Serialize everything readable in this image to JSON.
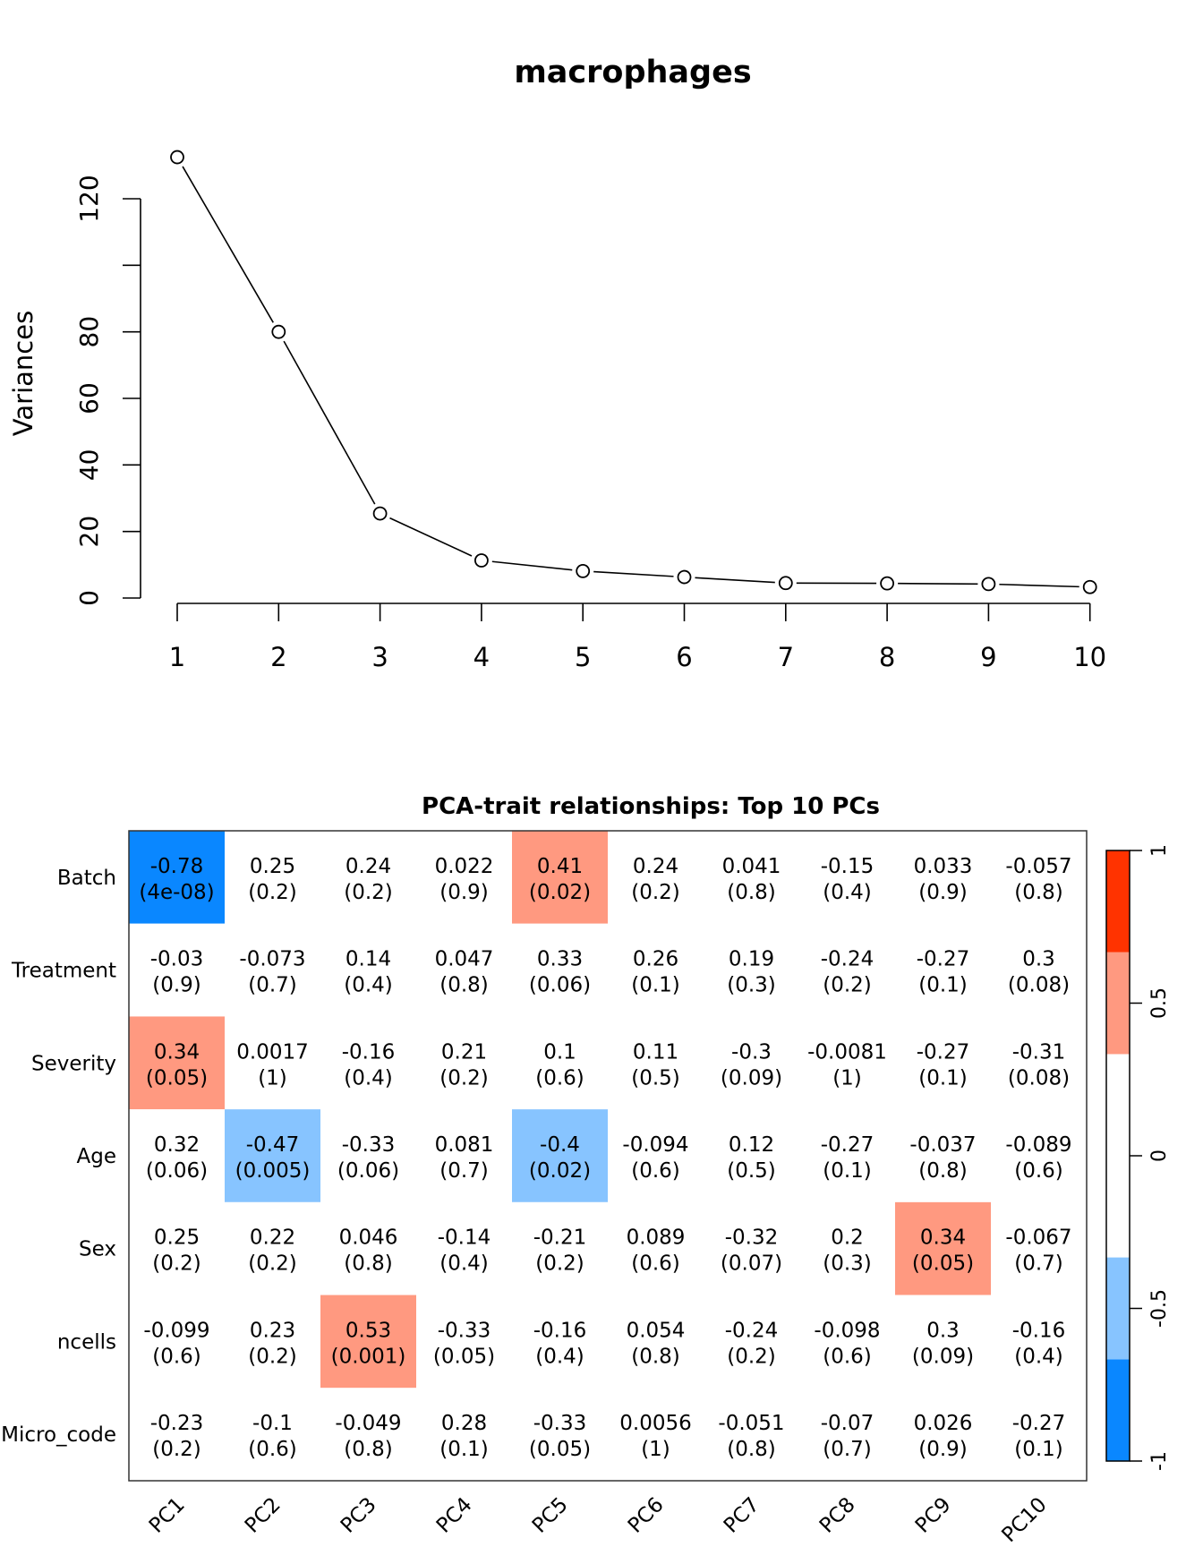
{
  "chart_data": [
    {
      "type": "line",
      "title": "macrophages",
      "xlabel": "",
      "ylabel": "Variances",
      "x": [
        1,
        2,
        3,
        4,
        5,
        6,
        7,
        8,
        9,
        10
      ],
      "values": [
        132.5,
        80,
        25.4,
        11.3,
        8.1,
        6.3,
        4.5,
        4.4,
        4.2,
        3.3
      ],
      "xticks": [
        "1",
        "2",
        "3",
        "4",
        "5",
        "6",
        "7",
        "8",
        "9",
        "10"
      ],
      "yticks": [
        0,
        20,
        40,
        60,
        80,
        100,
        120
      ],
      "ytick_labels": [
        "0",
        "20",
        "40",
        "60",
        "80",
        "",
        "120"
      ],
      "ylim": [
        0,
        132.5
      ],
      "marker": "open-circle",
      "grid": false
    },
    {
      "type": "heatmap",
      "title": "PCA-trait relationships: Top 10 PCs",
      "columns": [
        "PC1",
        "PC2",
        "PC3",
        "PC4",
        "PC5",
        "PC6",
        "PC7",
        "PC8",
        "PC9",
        "PC10"
      ],
      "rows": [
        {
          "label": "Batch",
          "cor": [
            "-0.78",
            "0.25",
            "0.24",
            "0.022",
            "0.41",
            "0.24",
            "0.041",
            "-0.15",
            "0.033",
            "-0.057"
          ],
          "p": [
            "(4e-08)",
            "(0.2)",
            "(0.2)",
            "(0.9)",
            "(0.02)",
            "(0.2)",
            "(0.8)",
            "(0.4)",
            "(0.9)",
            "(0.8)"
          ]
        },
        {
          "label": "Treatment",
          "cor": [
            "-0.03",
            "-0.073",
            "0.14",
            "0.047",
            "0.33",
            "0.26",
            "0.19",
            "-0.24",
            "-0.27",
            "0.3"
          ],
          "p": [
            "(0.9)",
            "(0.7)",
            "(0.4)",
            "(0.8)",
            "(0.06)",
            "(0.1)",
            "(0.3)",
            "(0.2)",
            "(0.1)",
            "(0.08)"
          ]
        },
        {
          "label": "Severity",
          "cor": [
            "0.34",
            "0.0017",
            "-0.16",
            "0.21",
            "0.1",
            "0.11",
            "-0.3",
            "-0.0081",
            "-0.27",
            "-0.31"
          ],
          "p": [
            "(0.05)",
            "(1)",
            "(0.4)",
            "(0.2)",
            "(0.6)",
            "(0.5)",
            "(0.09)",
            "(1)",
            "(0.1)",
            "(0.08)"
          ]
        },
        {
          "label": "Age",
          "cor": [
            "0.32",
            "-0.47",
            "-0.33",
            "0.081",
            "-0.4",
            "-0.094",
            "0.12",
            "-0.27",
            "-0.037",
            "-0.089"
          ],
          "p": [
            "(0.06)",
            "(0.005)",
            "(0.06)",
            "(0.7)",
            "(0.02)",
            "(0.6)",
            "(0.5)",
            "(0.1)",
            "(0.8)",
            "(0.6)"
          ]
        },
        {
          "label": "Sex",
          "cor": [
            "0.25",
            "0.22",
            "0.046",
            "-0.14",
            "-0.21",
            "0.089",
            "-0.32",
            "0.2",
            "0.34",
            "-0.067"
          ],
          "p": [
            "(0.2)",
            "(0.2)",
            "(0.8)",
            "(0.4)",
            "(0.2)",
            "(0.6)",
            "(0.07)",
            "(0.3)",
            "(0.05)",
            "(0.7)"
          ]
        },
        {
          "label": "ncells",
          "cor": [
            "-0.099",
            "0.23",
            "0.53",
            "-0.33",
            "-0.16",
            "0.054",
            "-0.24",
            "-0.098",
            "0.3",
            "-0.16"
          ],
          "p": [
            "(0.6)",
            "(0.2)",
            "(0.001)",
            "(0.05)",
            "(0.4)",
            "(0.8)",
            "(0.2)",
            "(0.6)",
            "(0.09)",
            "(0.4)"
          ]
        },
        {
          "label": "Micro_code",
          "cor": [
            "-0.23",
            "-0.1",
            "-0.049",
            "0.28",
            "-0.33",
            "0.0056",
            "-0.051",
            "-0.07",
            "0.026",
            "-0.27"
          ],
          "p": [
            "(0.2)",
            "(0.6)",
            "(0.8)",
            "(0.1)",
            "(0.05)",
            "(1)",
            "(0.8)",
            "(0.7)",
            "(0.9)",
            "(0.1)"
          ]
        }
      ],
      "colorbar": {
        "range": [
          -1,
          1
        ],
        "ticks": [
          "-1",
          "-0.5",
          "0",
          "0.5",
          "1"
        ],
        "tick_values": [
          -1,
          -0.5,
          0,
          0.5,
          1
        ],
        "bands": [
          {
            "from": -1,
            "to": -0.667,
            "color": "#0a87ff"
          },
          {
            "from": -0.667,
            "to": -0.333,
            "color": "#87c4ff"
          },
          {
            "from": -0.333,
            "to": 0.333,
            "color": "#ffffff"
          },
          {
            "from": 0.333,
            "to": 0.667,
            "color": "#ff9980"
          },
          {
            "from": 0.667,
            "to": 1,
            "color": "#ff3300"
          }
        ]
      }
    }
  ]
}
